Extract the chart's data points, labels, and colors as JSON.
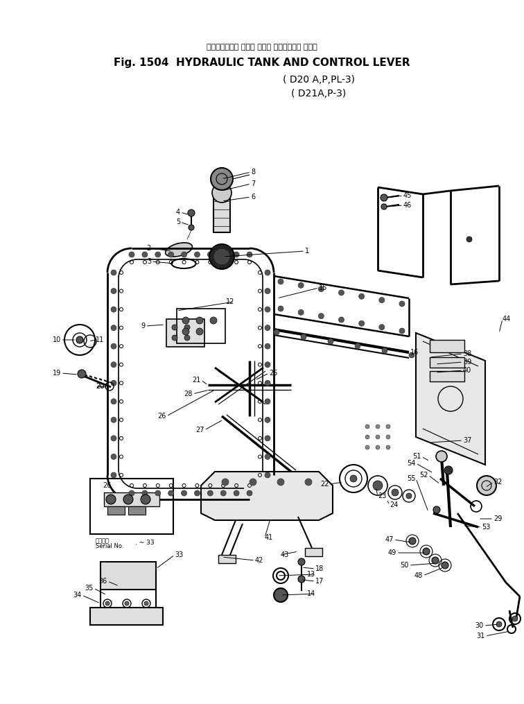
{
  "title_japanese": "ハイドロリック タンク および コントロール レバー",
  "title_english": "Fig. 1504  HYDRAULIC TANK AND CONTROL LEVER",
  "subtitle1": "( D20 A,P,PL-3)",
  "subtitle2": "( D21A,P-3)",
  "bg_color": "#ffffff",
  "line_color": "#000000",
  "fig_width": 7.56,
  "fig_height": 10.15,
  "dpi": 100
}
